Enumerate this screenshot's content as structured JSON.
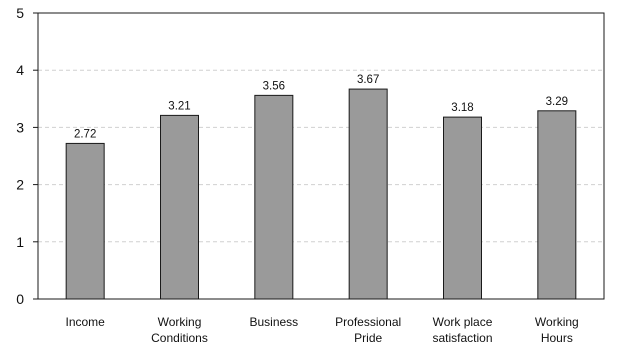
{
  "chart_data": {
    "type": "bar",
    "title": "",
    "xlabel": "",
    "ylabel": "",
    "categories": [
      [
        "Income"
      ],
      [
        "Working",
        "Conditions"
      ],
      [
        "Business"
      ],
      [
        "Professional",
        "Pride"
      ],
      [
        "Work place",
        "satisfaction"
      ],
      [
        "Working",
        "Hours"
      ]
    ],
    "values": [
      2.72,
      3.21,
      3.56,
      3.67,
      3.18,
      3.29
    ],
    "value_labels": [
      "2.72",
      "3.21",
      "3.56",
      "3.67",
      "3.18",
      "3.29"
    ],
    "ylim": [
      0,
      5
    ],
    "y_ticks": [
      "0",
      "1",
      "2",
      "3",
      "4",
      "5"
    ],
    "grid": "horizontal dashed",
    "legend": "none",
    "bar_color": "#9a9a9a",
    "bar_edge_color": "#1a1a1a",
    "grid_color": "#d0d0d0"
  }
}
